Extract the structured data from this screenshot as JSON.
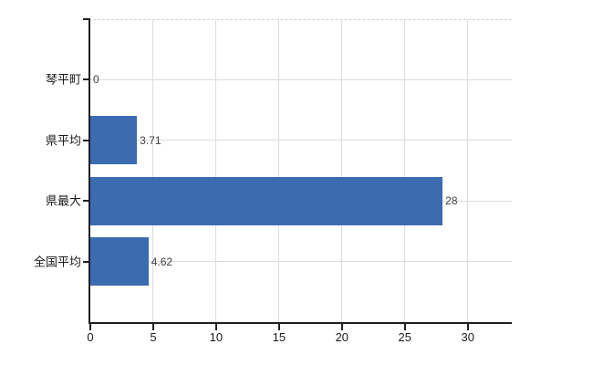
{
  "chart_data": {
    "type": "bar",
    "orientation": "horizontal",
    "title": "",
    "categories": [
      "琴平町",
      "県平均",
      "県最大",
      "全国平均"
    ],
    "values": [
      0,
      3.71,
      28,
      4.62
    ],
    "value_labels": [
      "0",
      "3.71",
      "28",
      "4.62"
    ],
    "x_ticks": [
      0,
      5,
      10,
      15,
      20,
      25,
      30
    ],
    "x_tick_labels": [
      "0",
      "5",
      "10",
      "15",
      "20",
      "25",
      "30"
    ],
    "xlim": [
      0,
      33.5
    ],
    "grid": true,
    "legend": false,
    "colors": {
      "bar": "#3b6cb1",
      "grid": "#dcdcdc",
      "axis": "#1f1f1f",
      "label_text": "#1a1a1a",
      "value_text": "#3f3f3f"
    }
  }
}
